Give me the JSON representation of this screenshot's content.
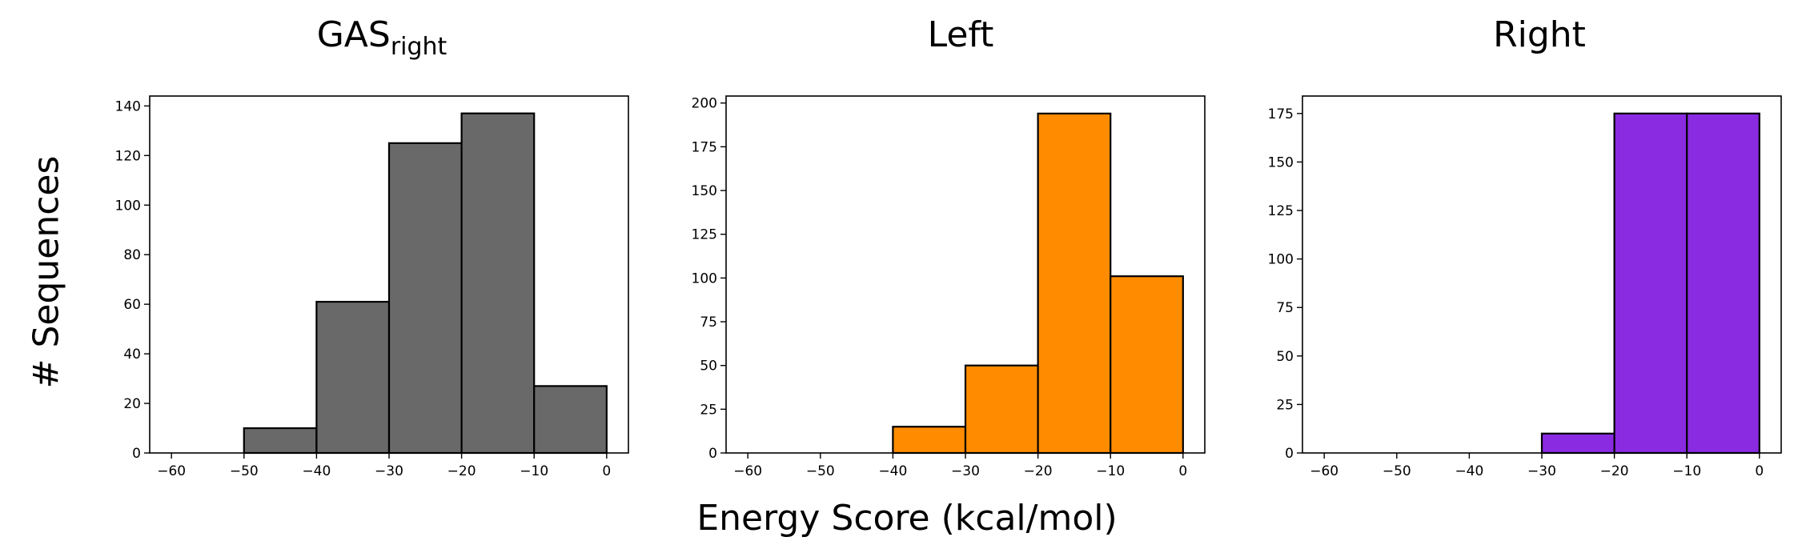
{
  "figure": {
    "ylabel": "# Sequences",
    "xlabel": "Energy Score (kcal/mol)"
  },
  "chart_data": [
    {
      "type": "bar",
      "title": "GAS",
      "title_subscript": "right",
      "color": "#696969",
      "bin_edges": [
        -60,
        -50,
        -40,
        -30,
        -20,
        -10,
        0
      ],
      "values": [
        0,
        10,
        61,
        125,
        137,
        27
      ],
      "xlim": [
        -63,
        3
      ],
      "ylim": [
        0,
        144
      ],
      "xticks": [
        -60,
        -50,
        -40,
        -30,
        -20,
        -10,
        0
      ],
      "xtick_labels": [
        "−60",
        "−50",
        "−40",
        "−30",
        "−20",
        "−10",
        "0"
      ],
      "yticks": [
        0,
        20,
        40,
        60,
        80,
        100,
        120,
        140
      ],
      "grid": false
    },
    {
      "type": "bar",
      "title": "Left",
      "title_subscript": "",
      "color": "#ff8c00",
      "bin_edges": [
        -60,
        -50,
        -40,
        -30,
        -20,
        -10,
        0
      ],
      "values": [
        0,
        0,
        15,
        50,
        194,
        101
      ],
      "xlim": [
        -63,
        3
      ],
      "ylim": [
        0,
        204
      ],
      "xticks": [
        -60,
        -50,
        -40,
        -30,
        -20,
        -10,
        0
      ],
      "xtick_labels": [
        "−60",
        "−50",
        "−40",
        "−30",
        "−20",
        "−10",
        "0"
      ],
      "yticks": [
        0,
        25,
        50,
        75,
        100,
        125,
        150,
        175,
        200
      ],
      "grid": false
    },
    {
      "type": "bar",
      "title": "Right",
      "title_subscript": "",
      "color": "#8a2be2",
      "bin_edges": [
        -60,
        -50,
        -40,
        -30,
        -20,
        -10,
        0
      ],
      "values": [
        0,
        0,
        0,
        10,
        175,
        175
      ],
      "xlim": [
        -63,
        3
      ],
      "ylim": [
        0,
        184
      ],
      "xticks": [
        -60,
        -50,
        -40,
        -30,
        -20,
        -10,
        0
      ],
      "xtick_labels": [
        "−60",
        "−50",
        "−40",
        "−30",
        "−20",
        "−10",
        "0"
      ],
      "yticks": [
        0,
        25,
        50,
        75,
        100,
        125,
        150,
        175
      ],
      "grid": false
    }
  ]
}
